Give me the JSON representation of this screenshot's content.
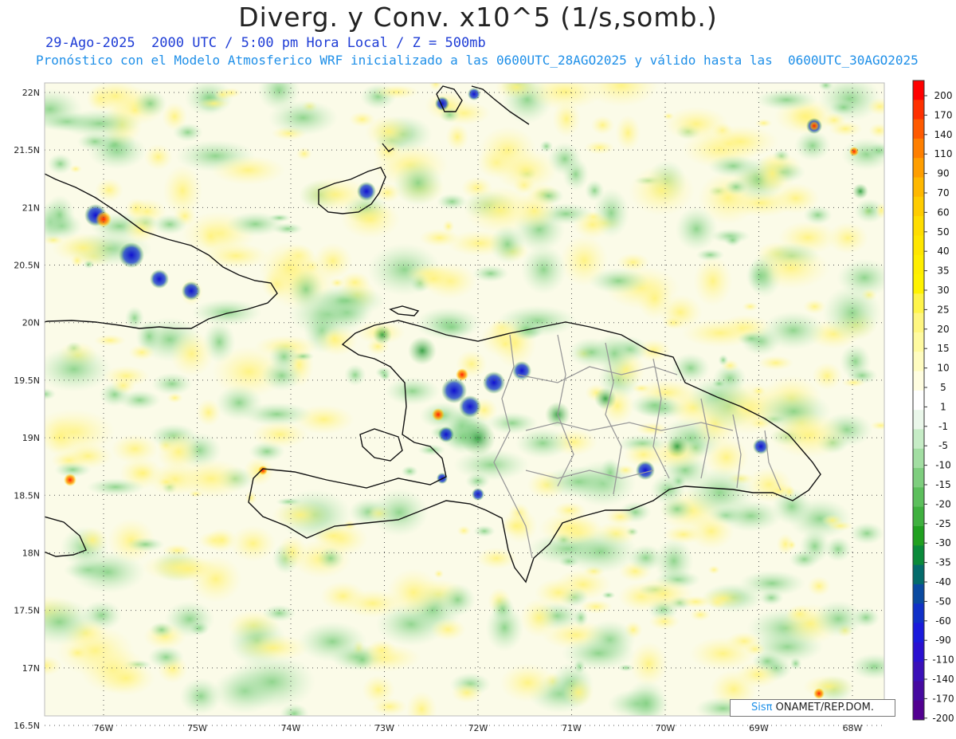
{
  "header": {
    "title": "Diverg. y Conv. x10^5 (1/s,somb.)",
    "subtitle_line1": "29-Ago-2025  2000 UTC / 5:00 pm Hora Local / Z = 500mb",
    "subtitle_line2": "Pronóstico con el Modelo Atmosferico WRF inicializado a las 0600UTC_28AGO2025 y válido hasta las  0600UTC_30AGO2025"
  },
  "map": {
    "lat_labels": [
      "22N",
      "21.5N",
      "21N",
      "20.5N",
      "20N",
      "19.5N",
      "19N",
      "18.5N",
      "18N",
      "17.5N",
      "17N",
      "16.5N"
    ],
    "lon_labels": [
      "76W",
      "75W",
      "74W",
      "73W",
      "72W",
      "71W",
      "70W",
      "69W",
      "68W"
    ],
    "lat_range": [
      16.5,
      22
    ],
    "lon_range": [
      -76.6,
      -67.6
    ],
    "grid": "dotted",
    "regions": [
      "Cuba",
      "Inagua",
      "Haiti",
      "Dominican Republic",
      "Jamaica",
      "Turks and Caicos"
    ]
  },
  "colorbar": {
    "labels": [
      "200",
      "170",
      "140",
      "110",
      "90",
      "70",
      "60",
      "50",
      "40",
      "35",
      "30",
      "25",
      "20",
      "15",
      "10",
      "5",
      "1",
      "-1",
      "-5",
      "-10",
      "-15",
      "-20",
      "-25",
      "-30",
      "-35",
      "-40",
      "-50",
      "-60",
      "-90",
      "-110",
      "-140",
      "-170",
      "-200"
    ],
    "colors": [
      "#ff0000",
      "#ff3000",
      "#ff5a00",
      "#ff7f00",
      "#ff9e00",
      "#ffb800",
      "#ffcc00",
      "#ffdd00",
      "#ffe600",
      "#ffee00",
      "#fff200",
      "#fff44a",
      "#fff680",
      "#fffaa0",
      "#fffcc0",
      "#fffde0",
      "#ffffff",
      "#eaf7ea",
      "#c6ecc6",
      "#a2dea2",
      "#7ece7e",
      "#5cbf5c",
      "#3fb03f",
      "#20a020",
      "#0a8a3a",
      "#046b6b",
      "#0a4aa0",
      "#1030c8",
      "#1a1adc",
      "#2a10d0",
      "#3a10b8",
      "#460aa0",
      "#520090"
    ]
  },
  "credit": {
    "logo": "Sisπ",
    "text": " ONAMET/REP.DOM."
  }
}
